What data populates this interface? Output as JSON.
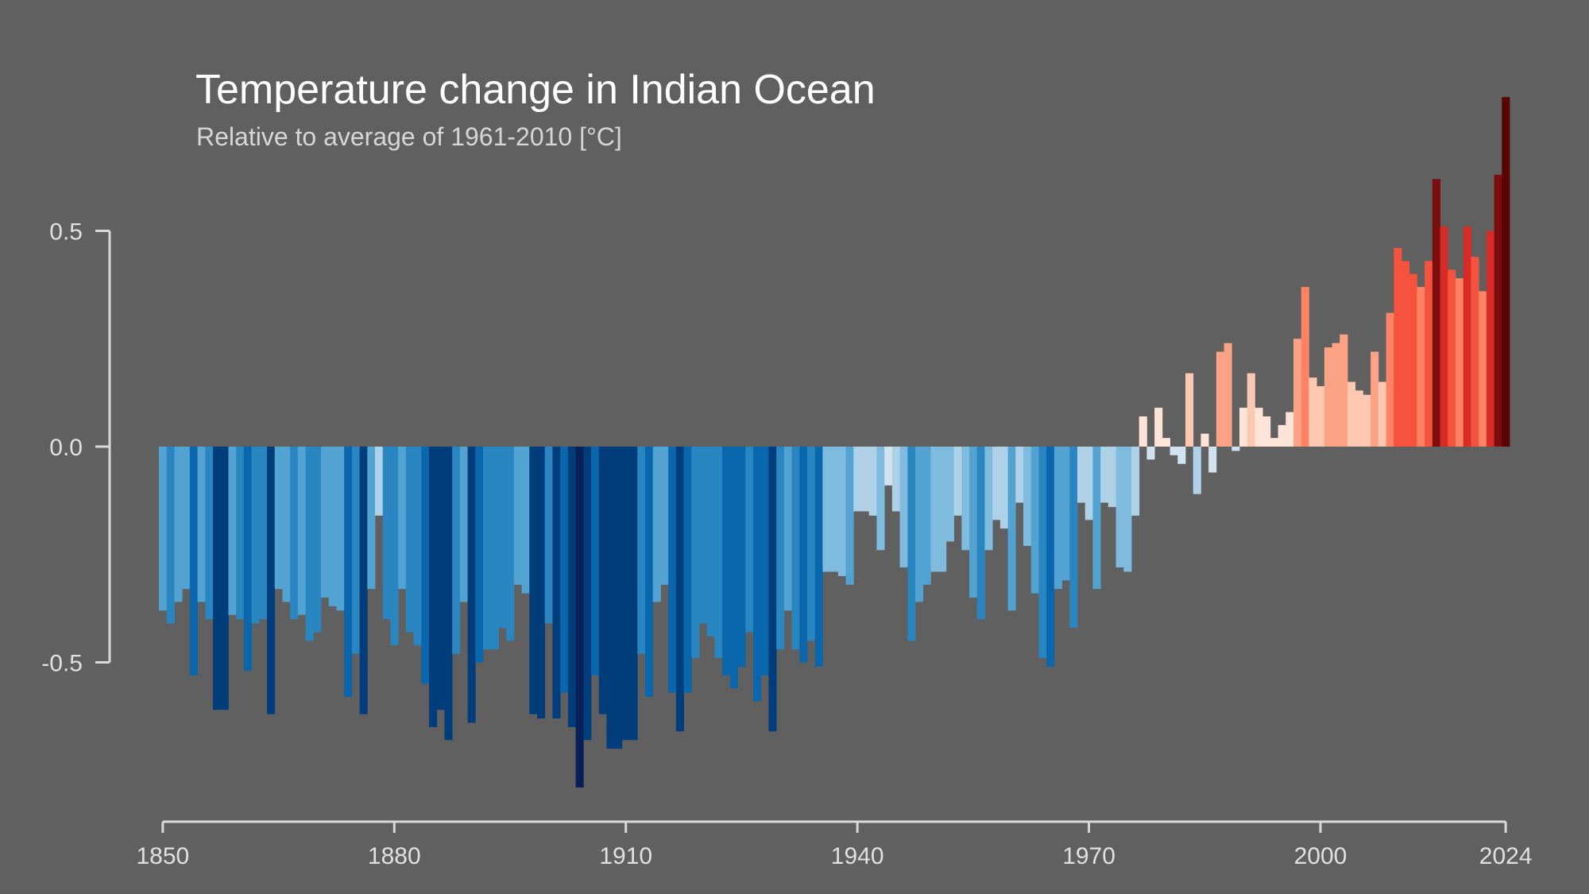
{
  "chart_data": {
    "type": "bar",
    "title": "Temperature change in Indian Ocean",
    "subtitle": "Relative to average of 1961-2010  [°C]",
    "xlabel": "",
    "ylabel": "",
    "x_start": 1850,
    "x_end": 2024,
    "ylim": [
      -0.85,
      0.85
    ],
    "grid": false,
    "legend": "none",
    "x_ticks": [
      1850,
      1880,
      1910,
      1940,
      1970,
      2000,
      2024
    ],
    "x_tick_labels": [
      "1850",
      "1880",
      "1910",
      "1940",
      "1970",
      "2000",
      "2024"
    ],
    "y_ticks": [
      0.5,
      0.0,
      -0.5
    ],
    "y_tick_labels": [
      "0.5",
      "0.0",
      "-0.5"
    ],
    "color_scale": {
      "negative": [
        "#d1e2f1",
        "#aed1e7",
        "#7ebbdf",
        "#52a2d2",
        "#2a86c1",
        "#0a66ad",
        "#023d7b",
        "#082058"
      ],
      "positive": [
        "#fee4d7",
        "#fdc8b1",
        "#fca385",
        "#fc8465",
        "#f5533d",
        "#d72c26",
        "#7c0e10",
        "#5a0405"
      ]
    },
    "values": [
      -0.38,
      -0.41,
      -0.36,
      -0.33,
      -0.53,
      -0.36,
      -0.4,
      -0.61,
      -0.61,
      -0.39,
      -0.4,
      -0.52,
      -0.41,
      -0.4,
      -0.62,
      -0.33,
      -0.36,
      -0.4,
      -0.39,
      -0.45,
      -0.43,
      -0.35,
      -0.37,
      -0.38,
      -0.58,
      -0.48,
      -0.62,
      -0.33,
      -0.16,
      -0.4,
      -0.46,
      -0.33,
      -0.43,
      -0.46,
      -0.55,
      -0.65,
      -0.61,
      -0.68,
      -0.48,
      -0.36,
      -0.64,
      -0.5,
      -0.47,
      -0.47,
      -0.42,
      -0.45,
      -0.32,
      -0.34,
      -0.62,
      -0.63,
      -0.41,
      -0.63,
      -0.57,
      -0.65,
      -0.79,
      -0.68,
      -0.53,
      -0.62,
      -0.7,
      -0.7,
      -0.68,
      -0.68,
      -0.48,
      -0.58,
      -0.36,
      -0.32,
      -0.57,
      -0.66,
      -0.57,
      -0.49,
      -0.41,
      -0.44,
      -0.49,
      -0.53,
      -0.56,
      -0.51,
      -0.43,
      -0.59,
      -0.53,
      -0.66,
      -0.47,
      -0.38,
      -0.47,
      -0.5,
      -0.45,
      -0.51,
      -0.29,
      -0.29,
      -0.3,
      -0.32,
      -0.15,
      -0.15,
      -0.16,
      -0.24,
      -0.09,
      -0.15,
      -0.28,
      -0.45,
      -0.36,
      -0.32,
      -0.29,
      -0.29,
      -0.22,
      -0.16,
      -0.24,
      -0.35,
      -0.4,
      -0.24,
      -0.17,
      -0.19,
      -0.38,
      -0.13,
      -0.23,
      -0.34,
      -0.49,
      -0.51,
      -0.33,
      -0.31,
      -0.42,
      -0.13,
      -0.17,
      -0.33,
      -0.13,
      -0.14,
      -0.28,
      -0.29,
      -0.16,
      0.07,
      -0.03,
      0.09,
      0.02,
      -0.02,
      -0.04,
      0.17,
      -0.11,
      0.03,
      -0.06,
      0.22,
      0.24,
      -0.01,
      0.09,
      0.17,
      0.09,
      0.07,
      0.02,
      0.05,
      0.08,
      0.25,
      0.37,
      0.16,
      0.14,
      0.23,
      0.24,
      0.26,
      0.15,
      0.13,
      0.12,
      0.22,
      0.15,
      0.31,
      0.46,
      0.43,
      0.4,
      0.37,
      0.43,
      0.62,
      0.51,
      0.41,
      0.39,
      0.51,
      0.44,
      0.36,
      0.5,
      0.63,
      0.81
    ]
  }
}
